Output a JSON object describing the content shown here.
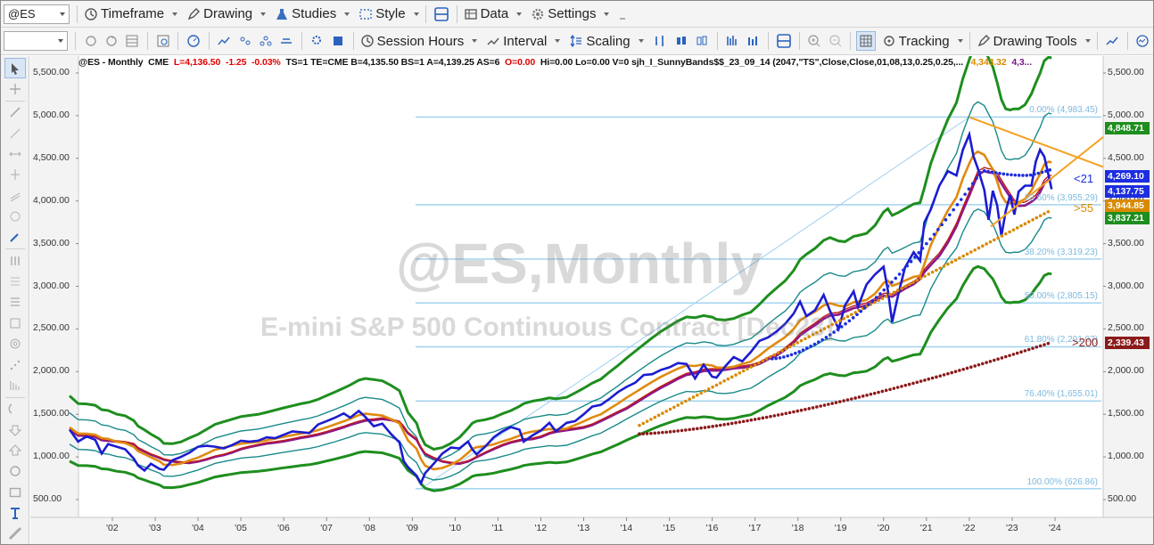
{
  "toolbar": {
    "symbol": "@ES",
    "items": [
      {
        "label": "Timeframe"
      },
      {
        "label": "Drawing"
      },
      {
        "label": "Studies"
      },
      {
        "label": "Style"
      },
      {
        "label": "Data"
      },
      {
        "label": "Settings"
      }
    ]
  },
  "toolbar2": {
    "combo_value": "",
    "items": [
      {
        "label": "Session Hours"
      },
      {
        "label": "Interval"
      },
      {
        "label": "Scaling"
      },
      {
        "label": "Tracking"
      },
      {
        "label": "Drawing Tools"
      }
    ]
  },
  "status": {
    "symbol_tf": "@ES - Monthly",
    "exchange": "CME",
    "last": "L=4,136.50",
    "change": "-1.25",
    "change_pct": "-0.03%",
    "rest": "TS=1  TE=CME  B=4,135.50  BS=1  A=4,139.25  AS=6",
    "open": "O=0.00",
    "rest2": "Hi=0.00  Lo=0.00  V=0  sjh_I_SunnyBands$$_23_09_14 (2047,\"TS\",Close,Close,01,08,13,0.25,0.25,...",
    "val1": "4,343.32",
    "val2": "4,3..."
  },
  "watermark": {
    "line1": "@ES,Monthly",
    "line2": "E-mini S&P 500 Continuous Contract [Dec23]"
  },
  "fib_levels": [
    {
      "label": "0.00% (4,983.45)",
      "value": 4983.45
    },
    {
      "label": "23.60% (3,955.29)",
      "value": 3955.29
    },
    {
      "label": "38.20% (3,319.23)",
      "value": 3319.23
    },
    {
      "label": "50.00% (2,805.15)",
      "value": 2805.15
    },
    {
      "label": "61.80% (2,291.07)",
      "value": 2291.07
    },
    {
      "label": "76.40% (1,655.01)",
      "value": 1655.01
    },
    {
      "label": "100.00% (626.86)",
      "value": 626.86
    }
  ],
  "y_axis": {
    "ticks": [
      "5,500.00",
      "5,000.00",
      "4,500.00",
      "4,000.00",
      "3,500.00",
      "3,000.00",
      "2,500.00",
      "2,000.00",
      "1,500.00",
      "1,000.00",
      "500.00"
    ],
    "tick_values": [
      5500,
      5000,
      4500,
      4000,
      3500,
      3000,
      2500,
      2000,
      1500,
      1000,
      500
    ],
    "right_ticks": [
      "5,500.00",
      "5,000.00",
      "4,500.00",
      "4,000.00",
      "3,500.00",
      "3,000.00",
      "2,500.00",
      "2,000.00",
      "1,500.00",
      "1,000.00",
      "500.00"
    ]
  },
  "x_axis": {
    "ticks": [
      "'02",
      "'03",
      "'04",
      "'05",
      "'06",
      "'07",
      "'08",
      "'09",
      "'10",
      "'11",
      "'12",
      "'13",
      "'14",
      "'15",
      "'16",
      "'17",
      "'18",
      "'19",
      "'20",
      "'21",
      "'22",
      "'23",
      "'24"
    ]
  },
  "price_badges": [
    {
      "label": "4,848.71",
      "value": 4848.71,
      "color": "#1e8e1e"
    },
    {
      "label": "4,269.10",
      "value": 4269.1,
      "color": "#1c2ee0"
    },
    {
      "label": "4,137.75",
      "value": 4137.75,
      "color": "#1c2ee0"
    },
    {
      "label": "3,944.85",
      "value": 3944.85,
      "color": "#d88a00"
    },
    {
      "label": "3,837.21",
      "value": 3837.21,
      "color": "#1e8e1e"
    },
    {
      "label": "2,339.43",
      "value": 2339.43,
      "color": "#8b1a1a"
    }
  ],
  "ma_labels": [
    {
      "label": "<21",
      "color": "#1c2ee0"
    },
    {
      "label": ">55",
      "color": "#d88a00"
    },
    {
      "label": ">200",
      "color": "#8b1a1a"
    }
  ],
  "colors": {
    "price": "#1c1cd0",
    "band_outer": "#1e8e1e",
    "band_inner": "#1a8a8a",
    "ma_orange": "#e08a10",
    "ma_purple": "#8a1a8a",
    "ma_red": "#c01818",
    "dots_blue": "#1c2ee0",
    "dots_orange": "#d88a00",
    "dots_darkred": "#8b1a1a",
    "trend_orange": "#f4a020",
    "fib": "#9ccfee"
  },
  "chart_data": {
    "type": "line",
    "title": "@ES - Monthly",
    "x_start_year": 2001.0,
    "ylim": [
      300,
      5700
    ],
    "price_series": [
      [
        2001.0,
        1320
      ],
      [
        2001.2,
        1180
      ],
      [
        2001.4,
        1240
      ],
      [
        2001.6,
        1200
      ],
      [
        2001.75,
        1040
      ],
      [
        2001.9,
        1150
      ],
      [
        2002.1,
        1120
      ],
      [
        2002.3,
        1090
      ],
      [
        2002.5,
        980
      ],
      [
        2002.6,
        900
      ],
      [
        2002.75,
        840
      ],
      [
        2002.9,
        920
      ],
      [
        2003.1,
        860
      ],
      [
        2003.2,
        850
      ],
      [
        2003.4,
        960
      ],
      [
        2003.6,
        1000
      ],
      [
        2003.8,
        1050
      ],
      [
        2004.0,
        1120
      ],
      [
        2004.2,
        1130
      ],
      [
        2004.4,
        1120
      ],
      [
        2004.6,
        1100
      ],
      [
        2004.8,
        1140
      ],
      [
        2005.0,
        1190
      ],
      [
        2005.2,
        1180
      ],
      [
        2005.4,
        1190
      ],
      [
        2005.6,
        1230
      ],
      [
        2005.8,
        1220
      ],
      [
        2006.0,
        1260
      ],
      [
        2006.2,
        1300
      ],
      [
        2006.4,
        1290
      ],
      [
        2006.6,
        1280
      ],
      [
        2006.8,
        1380
      ],
      [
        2007.0,
        1420
      ],
      [
        2007.2,
        1460
      ],
      [
        2007.4,
        1510
      ],
      [
        2007.55,
        1460
      ],
      [
        2007.75,
        1540
      ],
      [
        2007.9,
        1470
      ],
      [
        2008.1,
        1360
      ],
      [
        2008.3,
        1390
      ],
      [
        2008.5,
        1270
      ],
      [
        2008.7,
        1170
      ],
      [
        2008.8,
        950
      ],
      [
        2008.9,
        880
      ],
      [
        2009.1,
        780
      ],
      [
        2009.2,
        690
      ],
      [
        2009.3,
        810
      ],
      [
        2009.5,
        920
      ],
      [
        2009.7,
        1040
      ],
      [
        2009.9,
        1110
      ],
      [
        2010.1,
        1100
      ],
      [
        2010.3,
        1180
      ],
      [
        2010.4,
        1090
      ],
      [
        2010.5,
        1030
      ],
      [
        2010.7,
        1120
      ],
      [
        2010.9,
        1230
      ],
      [
        2011.1,
        1300
      ],
      [
        2011.3,
        1350
      ],
      [
        2011.5,
        1320
      ],
      [
        2011.6,
        1180
      ],
      [
        2011.8,
        1250
      ],
      [
        2012.0,
        1310
      ],
      [
        2012.2,
        1400
      ],
      [
        2012.35,
        1300
      ],
      [
        2012.6,
        1400
      ],
      [
        2012.8,
        1420
      ],
      [
        2013.0,
        1500
      ],
      [
        2013.2,
        1590
      ],
      [
        2013.4,
        1610
      ],
      [
        2013.6,
        1680
      ],
      [
        2013.8,
        1760
      ],
      [
        2014.0,
        1820
      ],
      [
        2014.2,
        1870
      ],
      [
        2014.4,
        1960
      ],
      [
        2014.6,
        1970
      ],
      [
        2014.8,
        2020
      ],
      [
        2015.0,
        2050
      ],
      [
        2015.2,
        2100
      ],
      [
        2015.4,
        2090
      ],
      [
        2015.6,
        1920
      ],
      [
        2015.8,
        2080
      ],
      [
        2016.0,
        1940
      ],
      [
        2016.1,
        1930
      ],
      [
        2016.3,
        2060
      ],
      [
        2016.5,
        2170
      ],
      [
        2016.7,
        2120
      ],
      [
        2016.9,
        2230
      ],
      [
        2017.1,
        2360
      ],
      [
        2017.3,
        2400
      ],
      [
        2017.5,
        2470
      ],
      [
        2017.7,
        2560
      ],
      [
        2017.9,
        2680
      ],
      [
        2018.05,
        2820
      ],
      [
        2018.2,
        2650
      ],
      [
        2018.4,
        2720
      ],
      [
        2018.6,
        2900
      ],
      [
        2018.75,
        2710
      ],
      [
        2018.95,
        2500
      ],
      [
        2019.1,
        2780
      ],
      [
        2019.3,
        2940
      ],
      [
        2019.4,
        2760
      ],
      [
        2019.6,
        3020
      ],
      [
        2019.8,
        3140
      ],
      [
        2020.0,
        3230
      ],
      [
        2020.1,
        2950
      ],
      [
        2020.2,
        2580
      ],
      [
        2020.35,
        2920
      ],
      [
        2020.5,
        3220
      ],
      [
        2020.7,
        3400
      ],
      [
        2020.85,
        3300
      ],
      [
        2020.95,
        3750
      ],
      [
        2021.1,
        3900
      ],
      [
        2021.3,
        4180
      ],
      [
        2021.5,
        4350
      ],
      [
        2021.7,
        4300
      ],
      [
        2021.85,
        4600
      ],
      [
        2022.0,
        4780
      ],
      [
        2022.1,
        4520
      ],
      [
        2022.2,
        4380
      ],
      [
        2022.35,
        4130
      ],
      [
        2022.45,
        3780
      ],
      [
        2022.55,
        4120
      ],
      [
        2022.65,
        3950
      ],
      [
        2022.75,
        3590
      ],
      [
        2022.85,
        3880
      ],
      [
        2022.95,
        4070
      ],
      [
        2023.05,
        3840
      ],
      [
        2023.15,
        4110
      ],
      [
        2023.3,
        4180
      ],
      [
        2023.45,
        4180
      ],
      [
        2023.55,
        4460
      ],
      [
        2023.65,
        4600
      ],
      [
        2023.75,
        4520
      ],
      [
        2023.85,
        4300
      ],
      [
        2023.92,
        4137.75
      ]
    ]
  }
}
